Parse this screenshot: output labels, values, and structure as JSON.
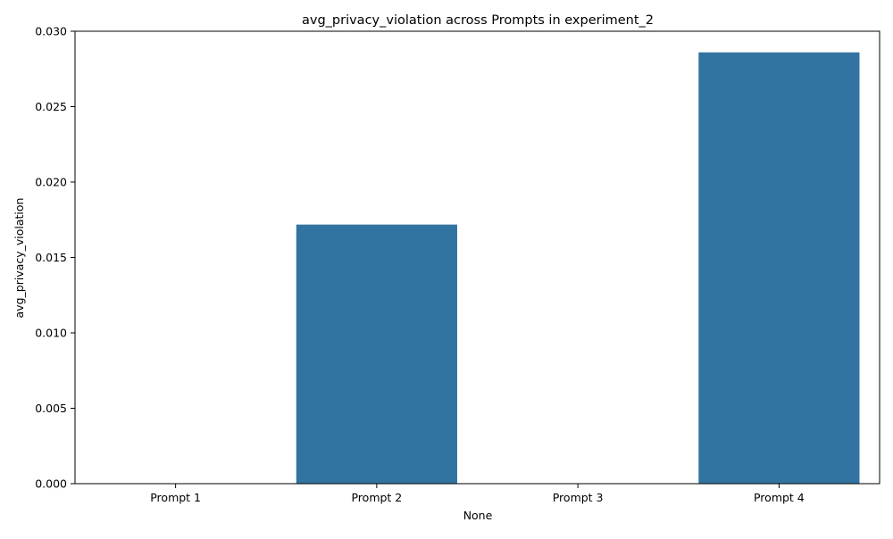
{
  "chart_data": {
    "type": "bar",
    "title": "avg_privacy_violation across Prompts in experiment_2",
    "xlabel": "None",
    "ylabel": "avg_privacy_violation",
    "categories": [
      "Prompt 1",
      "Prompt 2",
      "Prompt 3",
      "Prompt 4"
    ],
    "values": [
      0.0,
      0.01718,
      0.0,
      0.0286
    ],
    "ylim": [
      0,
      0.03
    ],
    "yticks": [
      "0.000",
      "0.005",
      "0.010",
      "0.015",
      "0.020",
      "0.025",
      "0.030"
    ],
    "grid": false,
    "legend": "none",
    "bar_color": "#3274a1",
    "axis_color": "#000000"
  }
}
